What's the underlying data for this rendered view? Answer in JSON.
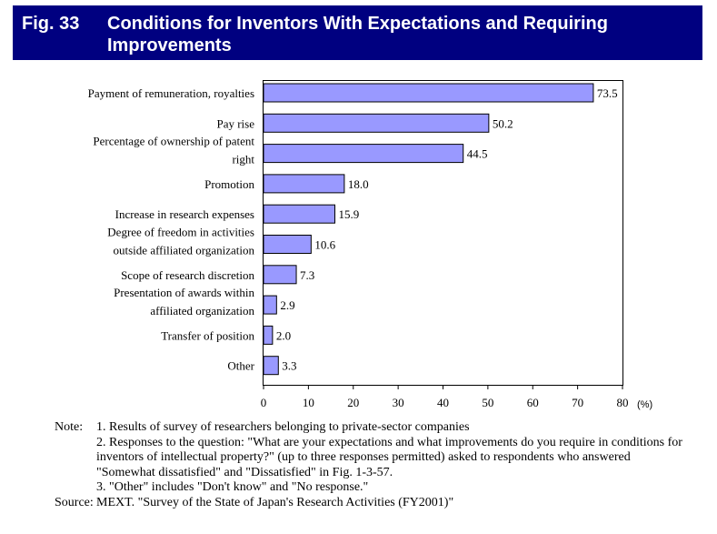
{
  "header": {
    "fig": "Fig. 33",
    "title": "Conditions for Inventors With Expectations and Requiring Improvements"
  },
  "chart_data": {
    "type": "bar",
    "orientation": "horizontal",
    "categories": [
      [
        "Payment of remuneration, royalties"
      ],
      [
        "Pay rise"
      ],
      [
        "Percentage of ownership of patent",
        "right"
      ],
      [
        "Promotion"
      ],
      [
        "Increase in research expenses"
      ],
      [
        "Degree of freedom in activities",
        "outside affiliated organization"
      ],
      [
        "Scope of research discretion"
      ],
      [
        "Presentation of awards within",
        "affiliated organization"
      ],
      [
        "Transfer of position"
      ],
      [
        "Other"
      ]
    ],
    "values": [
      73.5,
      50.2,
      44.5,
      18.0,
      15.9,
      10.6,
      7.3,
      2.9,
      2.0,
      3.3
    ],
    "value_labels": [
      "73.5",
      "50.2",
      "44.5",
      "18.0",
      "15.9",
      "10.6",
      "7.3",
      "2.9",
      "2.0",
      "3.3"
    ],
    "xlim": [
      0,
      80
    ],
    "xticks": [
      "0",
      "10",
      "20",
      "30",
      "40",
      "50",
      "60",
      "70",
      "80"
    ],
    "unit": "(%)",
    "bar_color": "#9999ff",
    "grid": false,
    "legend": "none"
  },
  "notes": {
    "note_key": "Note:",
    "lines": [
      "1. Results of survey of researchers belonging to private-sector companies",
      "2. Responses to the question: \"What are your expectations and what improvements do you require in conditions for inventors of intellectual property?\" (up to three responses permitted) asked to respondents who answered \"Somewhat dissatisfied\" and \"Dissatisfied\" in Fig. 1-3-57.",
      "3. \"Other\" includes \"Don't know\" and \"No response.\""
    ],
    "source_key": "Source:",
    "source": "MEXT. \"Survey of the State of Japan's Research Activities (FY2001)\""
  }
}
